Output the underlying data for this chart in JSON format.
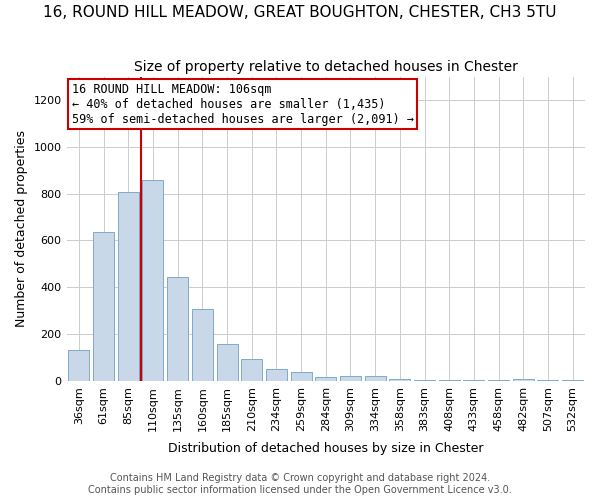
{
  "title": "16, ROUND HILL MEADOW, GREAT BOUGHTON, CHESTER, CH3 5TU",
  "subtitle": "Size of property relative to detached houses in Chester",
  "xlabel": "Distribution of detached houses by size in Chester",
  "ylabel": "Number of detached properties",
  "bar_color": "#c8d8e8",
  "bar_edge_color": "#7fa8c8",
  "background_color": "#ffffff",
  "grid_color": "#cccccc",
  "annotation_box_color": "#cc0000",
  "vline_color": "#cc0000",
  "categories": [
    "36sqm",
    "61sqm",
    "85sqm",
    "110sqm",
    "135sqm",
    "160sqm",
    "185sqm",
    "210sqm",
    "234sqm",
    "259sqm",
    "284sqm",
    "309sqm",
    "334sqm",
    "358sqm",
    "383sqm",
    "408sqm",
    "433sqm",
    "458sqm",
    "482sqm",
    "507sqm",
    "532sqm"
  ],
  "values": [
    130,
    635,
    808,
    858,
    443,
    305,
    158,
    95,
    50,
    38,
    15,
    20,
    20,
    10,
    5,
    5,
    2,
    2,
    8,
    2,
    2
  ],
  "vline_x": 2.5,
  "annotation_text": "16 ROUND HILL MEADOW: 106sqm\n← 40% of detached houses are smaller (1,435)\n59% of semi-detached houses are larger (2,091) →",
  "ylim": [
    0,
    1300
  ],
  "yticks": [
    0,
    200,
    400,
    600,
    800,
    1000,
    1200
  ],
  "footer": "Contains HM Land Registry data © Crown copyright and database right 2024.\nContains public sector information licensed under the Open Government Licence v3.0.",
  "title_fontsize": 11,
  "subtitle_fontsize": 10,
  "xlabel_fontsize": 9,
  "ylabel_fontsize": 9,
  "tick_fontsize": 8,
  "annotation_fontsize": 8.5,
  "footer_fontsize": 7
}
